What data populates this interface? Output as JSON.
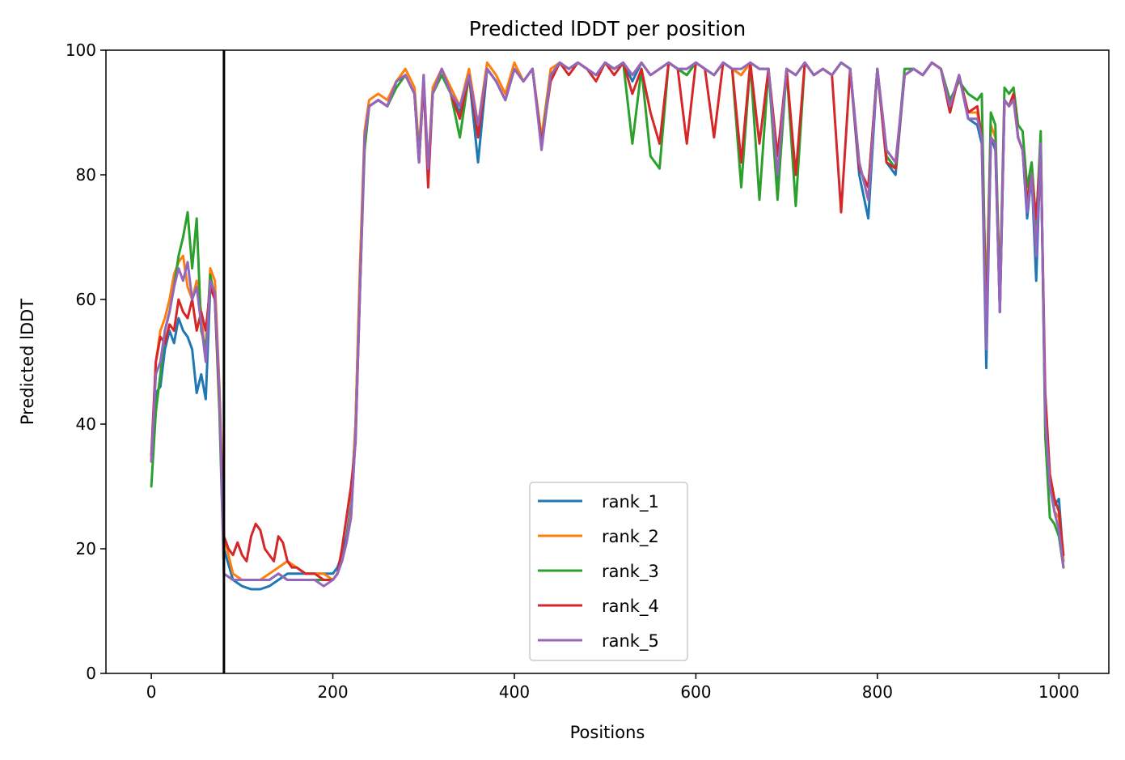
{
  "chart_data": {
    "type": "line",
    "title": "Predicted lDDT per position",
    "xlabel": "Positions",
    "ylabel": "Predicted lDDT",
    "xlim": [
      -50,
      1055
    ],
    "ylim": [
      0,
      100
    ],
    "xticks": [
      0,
      200,
      400,
      600,
      800,
      1000
    ],
    "yticks": [
      0,
      20,
      40,
      60,
      80,
      100
    ],
    "grid": false,
    "legend_position": "lower center",
    "vline_x": 80,
    "vline_color": "#000000",
    "series": [
      {
        "name": "rank_1",
        "color": "#1f77b4",
        "x": [
          0,
          5,
          10,
          15,
          20,
          25,
          30,
          35,
          40,
          45,
          50,
          55,
          60,
          65,
          70,
          75,
          80,
          90,
          100,
          110,
          120,
          130,
          140,
          150,
          160,
          170,
          180,
          190,
          200,
          205,
          210,
          215,
          220,
          225,
          230,
          235,
          240,
          250,
          260,
          270,
          280,
          290,
          295,
          300,
          305,
          310,
          320,
          330,
          340,
          350,
          360,
          370,
          380,
          390,
          400,
          410,
          420,
          430,
          440,
          450,
          460,
          470,
          480,
          490,
          500,
          510,
          520,
          530,
          540,
          550,
          560,
          570,
          580,
          590,
          600,
          610,
          620,
          630,
          640,
          650,
          660,
          670,
          680,
          690,
          700,
          710,
          720,
          730,
          740,
          750,
          760,
          770,
          780,
          790,
          800,
          810,
          820,
          830,
          840,
          850,
          860,
          870,
          880,
          890,
          900,
          910,
          915,
          920,
          925,
          930,
          935,
          940,
          945,
          950,
          955,
          960,
          965,
          970,
          975,
          980,
          985,
          990,
          995,
          1000,
          1005
        ],
        "y": [
          34,
          45,
          46,
          52,
          55,
          53,
          57,
          55,
          54,
          52,
          45,
          48,
          44,
          62,
          60,
          45,
          20,
          15,
          14,
          13.5,
          13.5,
          14,
          15,
          16,
          16,
          16,
          16,
          16,
          16,
          17,
          19,
          22,
          27,
          40,
          65,
          85,
          91,
          92,
          91,
          95,
          96,
          93,
          82,
          95,
          80,
          93,
          97,
          93,
          90,
          96,
          82,
          97,
          95,
          92,
          97,
          95,
          97,
          85,
          96,
          98,
          97,
          98,
          97,
          96,
          98,
          97,
          98,
          95,
          98,
          96,
          97,
          98,
          97,
          96,
          98,
          97,
          96,
          98,
          97,
          96,
          98,
          97,
          97,
          78,
          97,
          96,
          98,
          96,
          97,
          96,
          98,
          97,
          80,
          73,
          97,
          82,
          80,
          96,
          97,
          96,
          98,
          97,
          90,
          96,
          89,
          88,
          85,
          49,
          86,
          84,
          58,
          92,
          91,
          93,
          86,
          84,
          73,
          80,
          63,
          85,
          40,
          30,
          27,
          28,
          18
        ]
      },
      {
        "name": "rank_2",
        "color": "#ff7f0e",
        "x": [
          0,
          5,
          10,
          15,
          20,
          25,
          30,
          35,
          40,
          45,
          50,
          55,
          60,
          65,
          70,
          75,
          80,
          90,
          100,
          110,
          120,
          130,
          140,
          150,
          160,
          170,
          180,
          190,
          200,
          205,
          210,
          215,
          220,
          225,
          230,
          235,
          240,
          250,
          260,
          270,
          280,
          290,
          295,
          300,
          305,
          310,
          320,
          330,
          340,
          350,
          360,
          370,
          380,
          390,
          400,
          410,
          420,
          430,
          440,
          450,
          460,
          470,
          480,
          490,
          500,
          510,
          520,
          530,
          540,
          550,
          560,
          570,
          580,
          590,
          600,
          610,
          620,
          630,
          640,
          650,
          660,
          670,
          680,
          690,
          700,
          710,
          720,
          730,
          740,
          750,
          760,
          770,
          780,
          790,
          800,
          810,
          820,
          830,
          840,
          850,
          860,
          870,
          880,
          890,
          900,
          910,
          915,
          920,
          925,
          930,
          935,
          940,
          945,
          950,
          955,
          960,
          965,
          970,
          975,
          980,
          985,
          990,
          995,
          1000,
          1005
        ],
        "y": [
          34,
          50,
          55,
          57,
          60,
          64,
          66,
          67,
          62,
          60,
          63,
          58,
          50,
          65,
          63,
          46,
          22,
          16,
          15,
          15,
          15,
          16,
          17,
          18,
          17,
          16,
          16,
          16,
          15,
          16,
          18,
          21,
          26,
          40,
          66,
          87,
          92,
          93,
          92,
          95,
          97,
          94,
          84,
          96,
          81,
          94,
          97,
          94,
          91,
          97,
          88,
          98,
          96,
          93,
          98,
          95,
          97,
          86,
          97,
          98,
          97,
          98,
          97,
          96,
          98,
          97,
          98,
          96,
          98,
          96,
          97,
          98,
          97,
          97,
          98,
          97,
          96,
          98,
          97,
          96,
          98,
          97,
          97,
          80,
          97,
          96,
          98,
          96,
          97,
          96,
          98,
          97,
          82,
          76,
          97,
          84,
          82,
          96,
          97,
          96,
          98,
          97,
          91,
          96,
          90,
          90,
          86,
          60,
          88,
          86,
          62,
          92,
          91,
          92,
          86,
          84,
          76,
          80,
          68,
          84,
          42,
          31,
          26,
          25,
          18
        ]
      },
      {
        "name": "rank_3",
        "color": "#2ca02c",
        "x": [
          0,
          5,
          10,
          15,
          20,
          25,
          30,
          35,
          40,
          45,
          50,
          55,
          60,
          65,
          70,
          75,
          80,
          90,
          100,
          110,
          120,
          130,
          140,
          150,
          160,
          170,
          180,
          190,
          200,
          205,
          210,
          215,
          220,
          225,
          230,
          235,
          240,
          250,
          260,
          270,
          280,
          290,
          295,
          300,
          305,
          310,
          320,
          330,
          340,
          350,
          360,
          370,
          380,
          390,
          400,
          410,
          420,
          430,
          440,
          450,
          460,
          470,
          480,
          490,
          500,
          510,
          520,
          530,
          540,
          550,
          560,
          570,
          580,
          590,
          600,
          610,
          620,
          630,
          640,
          650,
          660,
          670,
          680,
          690,
          700,
          710,
          720,
          730,
          740,
          750,
          760,
          770,
          780,
          790,
          800,
          810,
          820,
          830,
          840,
          850,
          860,
          870,
          880,
          890,
          900,
          910,
          915,
          920,
          925,
          930,
          935,
          940,
          945,
          950,
          955,
          960,
          965,
          970,
          975,
          980,
          985,
          990,
          995,
          1000,
          1005
        ],
        "y": [
          30,
          42,
          48,
          55,
          58,
          62,
          67,
          70,
          74,
          65,
          73,
          55,
          52,
          64,
          60,
          42,
          16,
          15,
          15,
          15,
          15,
          15,
          16,
          15,
          15,
          15,
          15,
          15,
          15,
          16,
          18,
          21,
          25,
          38,
          62,
          84,
          91,
          92,
          91,
          94,
          96,
          93,
          83,
          95,
          80,
          93,
          96,
          93,
          86,
          96,
          87,
          97,
          95,
          92,
          97,
          95,
          97,
          85,
          96,
          98,
          97,
          98,
          97,
          96,
          98,
          97,
          98,
          85,
          97,
          83,
          81,
          98,
          97,
          96,
          98,
          97,
          96,
          98,
          97,
          78,
          98,
          76,
          97,
          76,
          97,
          75,
          98,
          96,
          97,
          96,
          98,
          97,
          81,
          78,
          97,
          83,
          81,
          97,
          97,
          96,
          98,
          97,
          92,
          95,
          93,
          92,
          93,
          55,
          90,
          88,
          60,
          94,
          93,
          94,
          88,
          87,
          78,
          82,
          72,
          87,
          38,
          25,
          24,
          22,
          17
        ]
      },
      {
        "name": "rank_4",
        "color": "#d62728",
        "x": [
          0,
          5,
          10,
          15,
          20,
          25,
          30,
          35,
          40,
          45,
          50,
          55,
          60,
          65,
          70,
          75,
          80,
          85,
          90,
          95,
          100,
          105,
          110,
          115,
          120,
          125,
          130,
          135,
          140,
          145,
          150,
          155,
          160,
          170,
          180,
          190,
          200,
          205,
          210,
          215,
          220,
          225,
          230,
          235,
          240,
          250,
          260,
          270,
          280,
          290,
          295,
          300,
          305,
          310,
          320,
          330,
          340,
          350,
          360,
          370,
          380,
          390,
          400,
          410,
          420,
          430,
          440,
          450,
          460,
          470,
          480,
          490,
          500,
          510,
          520,
          530,
          540,
          550,
          560,
          570,
          580,
          590,
          600,
          610,
          620,
          630,
          640,
          650,
          660,
          670,
          680,
          690,
          700,
          710,
          720,
          730,
          740,
          750,
          760,
          770,
          780,
          790,
          800,
          810,
          820,
          830,
          840,
          850,
          860,
          870,
          880,
          890,
          900,
          910,
          915,
          920,
          925,
          930,
          935,
          940,
          945,
          950,
          955,
          960,
          965,
          970,
          975,
          980,
          985,
          990,
          995,
          1000,
          1005
        ],
        "y": [
          35,
          50,
          54,
          53,
          56,
          55,
          60,
          58,
          57,
          60,
          55,
          58,
          55,
          62,
          60,
          44,
          22,
          20,
          19,
          21,
          19,
          18,
          22,
          24,
          23,
          20,
          19,
          18,
          22,
          21,
          18,
          17,
          17,
          16,
          16,
          15,
          15,
          16,
          20,
          25,
          30,
          37,
          62,
          86,
          91,
          92,
          91,
          95,
          96,
          93,
          82,
          95,
          78,
          93,
          97,
          93,
          89,
          96,
          86,
          97,
          95,
          92,
          97,
          95,
          97,
          85,
          95,
          98,
          96,
          98,
          97,
          95,
          98,
          96,
          98,
          93,
          97,
          90,
          85,
          98,
          97,
          85,
          98,
          97,
          86,
          98,
          97,
          82,
          98,
          85,
          97,
          83,
          97,
          80,
          98,
          96,
          97,
          96,
          74,
          97,
          81,
          78,
          97,
          82,
          81,
          96,
          97,
          96,
          98,
          97,
          90,
          96,
          90,
          91,
          86,
          55,
          86,
          85,
          58,
          92,
          91,
          93,
          86,
          84,
          76,
          80,
          73,
          84,
          45,
          32,
          28,
          26,
          19
        ]
      },
      {
        "name": "rank_5",
        "color": "#9467bd",
        "x": [
          0,
          5,
          10,
          15,
          20,
          25,
          30,
          35,
          40,
          45,
          50,
          55,
          60,
          65,
          70,
          75,
          80,
          90,
          100,
          110,
          120,
          130,
          140,
          150,
          160,
          170,
          180,
          190,
          200,
          205,
          210,
          215,
          220,
          225,
          230,
          235,
          240,
          250,
          260,
          270,
          280,
          290,
          295,
          300,
          305,
          310,
          320,
          330,
          340,
          350,
          360,
          370,
          380,
          390,
          400,
          410,
          420,
          430,
          440,
          450,
          460,
          470,
          480,
          490,
          500,
          510,
          520,
          530,
          540,
          550,
          560,
          570,
          580,
          590,
          600,
          610,
          620,
          630,
          640,
          650,
          660,
          670,
          680,
          690,
          700,
          710,
          720,
          730,
          740,
          750,
          760,
          770,
          780,
          790,
          800,
          810,
          820,
          830,
          840,
          850,
          860,
          870,
          880,
          890,
          900,
          910,
          915,
          920,
          925,
          930,
          935,
          940,
          945,
          950,
          955,
          960,
          965,
          970,
          975,
          980,
          985,
          990,
          995,
          1000,
          1005
        ],
        "y": [
          34,
          48,
          50,
          55,
          58,
          62,
          65,
          63,
          66,
          60,
          62,
          56,
          50,
          63,
          61,
          45,
          16,
          15,
          15,
          15,
          15,
          15,
          16,
          15,
          15,
          15,
          15,
          14,
          15,
          16,
          18,
          21,
          25,
          38,
          62,
          86,
          91,
          92,
          91,
          95,
          96,
          93,
          82,
          96,
          81,
          93,
          97,
          93,
          91,
          96,
          88,
          97,
          95,
          92,
          97,
          95,
          97,
          84,
          96,
          98,
          97,
          98,
          97,
          96,
          98,
          97,
          98,
          96,
          98,
          96,
          97,
          98,
          97,
          97,
          98,
          97,
          96,
          98,
          97,
          97,
          98,
          97,
          97,
          80,
          97,
          96,
          98,
          96,
          97,
          96,
          98,
          97,
          82,
          76,
          97,
          84,
          82,
          96,
          97,
          96,
          98,
          97,
          91,
          96,
          89,
          89,
          86,
          52,
          86,
          85,
          58,
          92,
          91,
          92,
          86,
          84,
          74,
          80,
          67,
          85,
          41,
          30,
          26,
          23,
          17
        ]
      }
    ]
  }
}
